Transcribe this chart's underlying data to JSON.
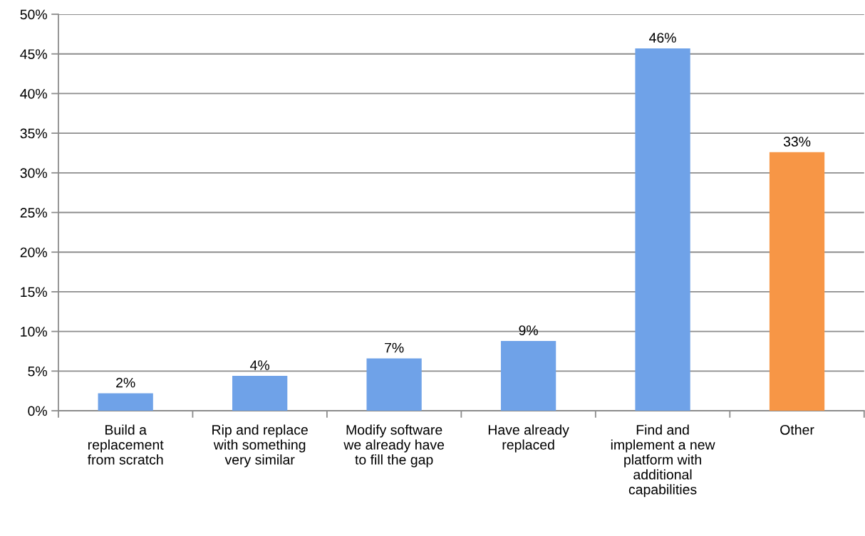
{
  "chart_data": {
    "type": "bar",
    "categories": [
      "Build a replacement from scratch",
      "Rip and replace with something very similar",
      "Modify software we already have to fill the gap",
      "Have already replaced",
      "Find and implement a new platform with additional capabilities",
      "Other"
    ],
    "values": [
      2.2,
      4.4,
      6.6,
      8.8,
      45.7,
      32.6
    ],
    "colors": [
      "#6fa2e8",
      "#6fa2e8",
      "#6fa2e8",
      "#6fa2e8",
      "#6fa2e8",
      "#f79646"
    ],
    "value_labels": [
      "2%",
      "4%",
      "7%",
      "9%",
      "46%",
      "33%"
    ],
    "ylim": [
      0,
      50
    ],
    "yticks": [
      {
        "value": 0,
        "label": "0%"
      },
      {
        "value": 5,
        "label": "5%"
      },
      {
        "value": 10,
        "label": "10%"
      },
      {
        "value": 15,
        "label": "15%"
      },
      {
        "value": 20,
        "label": "20%"
      },
      {
        "value": 25,
        "label": "25%"
      },
      {
        "value": 30,
        "label": "30%"
      },
      {
        "value": 35,
        "label": "35%"
      },
      {
        "value": 40,
        "label": "40%"
      },
      {
        "value": 45,
        "label": "45%"
      },
      {
        "value": 50,
        "label": "50%"
      }
    ],
    "grid": "y"
  }
}
